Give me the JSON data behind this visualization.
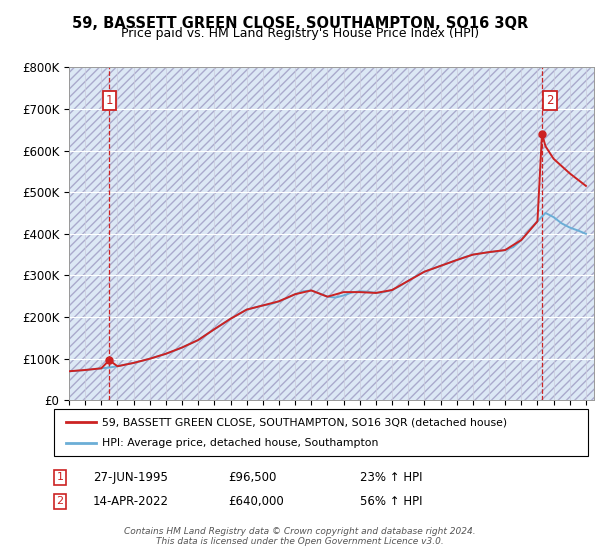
{
  "title": "59, BASSETT GREEN CLOSE, SOUTHAMPTON, SO16 3QR",
  "subtitle": "Price paid vs. HM Land Registry's House Price Index (HPI)",
  "ylim": [
    0,
    800000
  ],
  "yticks": [
    0,
    100000,
    200000,
    300000,
    400000,
    500000,
    600000,
    700000,
    800000
  ],
  "ytick_labels": [
    "£0",
    "£100K",
    "£200K",
    "£300K",
    "£400K",
    "£500K",
    "£600K",
    "£700K",
    "£800K"
  ],
  "legend_line1": "59, BASSETT GREEN CLOSE, SOUTHAMPTON, SO16 3QR (detached house)",
  "legend_line2": "HPI: Average price, detached house, Southampton",
  "annotation1_date": "27-JUN-1995",
  "annotation1_price": "£96,500",
  "annotation1_hpi": "23% ↑ HPI",
  "annotation2_date": "14-APR-2022",
  "annotation2_price": "£640,000",
  "annotation2_hpi": "56% ↑ HPI",
  "footer": "Contains HM Land Registry data © Crown copyright and database right 2024.\nThis data is licensed under the Open Government Licence v3.0.",
  "sale1_x": 1995.49,
  "sale1_y": 96500,
  "sale2_x": 2022.28,
  "sale2_y": 640000,
  "hpi_color": "#6baed6",
  "price_color": "#cc2222",
  "background_color": "#dce8f5",
  "xlim_min": 1993,
  "xlim_max": 2025.5,
  "hpi_x": [
    1993.0,
    1993.5,
    1994.0,
    1994.5,
    1995.0,
    1995.5,
    1996.0,
    1996.5,
    1997.0,
    1997.5,
    1998.0,
    1998.5,
    1999.0,
    1999.5,
    2000.0,
    2000.5,
    2001.0,
    2001.5,
    2002.0,
    2002.5,
    2003.0,
    2003.5,
    2004.0,
    2004.5,
    2005.0,
    2005.5,
    2006.0,
    2006.5,
    2007.0,
    2007.5,
    2008.0,
    2008.5,
    2009.0,
    2009.5,
    2010.0,
    2010.5,
    2011.0,
    2011.5,
    2012.0,
    2012.5,
    2013.0,
    2013.5,
    2014.0,
    2014.5,
    2015.0,
    2015.5,
    2016.0,
    2016.5,
    2017.0,
    2017.5,
    2018.0,
    2018.5,
    2019.0,
    2019.5,
    2020.0,
    2020.5,
    2021.0,
    2021.5,
    2022.0,
    2022.5,
    2023.0,
    2023.5,
    2024.0,
    2024.5,
    2025.0
  ],
  "hpi_y": [
    70000,
    71000,
    73000,
    75000,
    77000,
    79000,
    82000,
    86000,
    90000,
    95000,
    100000,
    106000,
    112000,
    119000,
    127000,
    136000,
    145000,
    158000,
    171000,
    183000,
    196000,
    207000,
    218000,
    223000,
    228000,
    231000,
    238000,
    246000,
    255000,
    262000,
    264000,
    257000,
    249000,
    247000,
    252000,
    259000,
    262000,
    261000,
    258000,
    260000,
    265000,
    275000,
    287000,
    299000,
    309000,
    316000,
    323000,
    330000,
    337000,
    344000,
    350000,
    353000,
    356000,
    358000,
    361000,
    368000,
    385000,
    408000,
    430000,
    450000,
    440000,
    425000,
    415000,
    408000,
    400000
  ],
  "price_x": [
    1993.0,
    1994.0,
    1995.0,
    1995.49,
    1996.0,
    1997.0,
    1998.0,
    1999.0,
    2000.0,
    2001.0,
    2002.0,
    2003.0,
    2004.0,
    2005.0,
    2006.0,
    2007.0,
    2008.0,
    2009.0,
    2010.0,
    2011.0,
    2012.0,
    2013.0,
    2014.0,
    2015.0,
    2016.0,
    2017.0,
    2018.0,
    2019.0,
    2020.0,
    2021.0,
    2022.0,
    2022.28,
    2022.5,
    2023.0,
    2024.0,
    2025.0
  ],
  "price_y": [
    70000,
    73000,
    77000,
    96500,
    82000,
    90000,
    100000,
    112000,
    127000,
    145000,
    171000,
    196000,
    218000,
    228000,
    238000,
    255000,
    264000,
    249000,
    260000,
    260000,
    258000,
    265000,
    287000,
    309000,
    323000,
    337000,
    350000,
    356000,
    361000,
    385000,
    430000,
    640000,
    610000,
    580000,
    545000,
    515000
  ]
}
